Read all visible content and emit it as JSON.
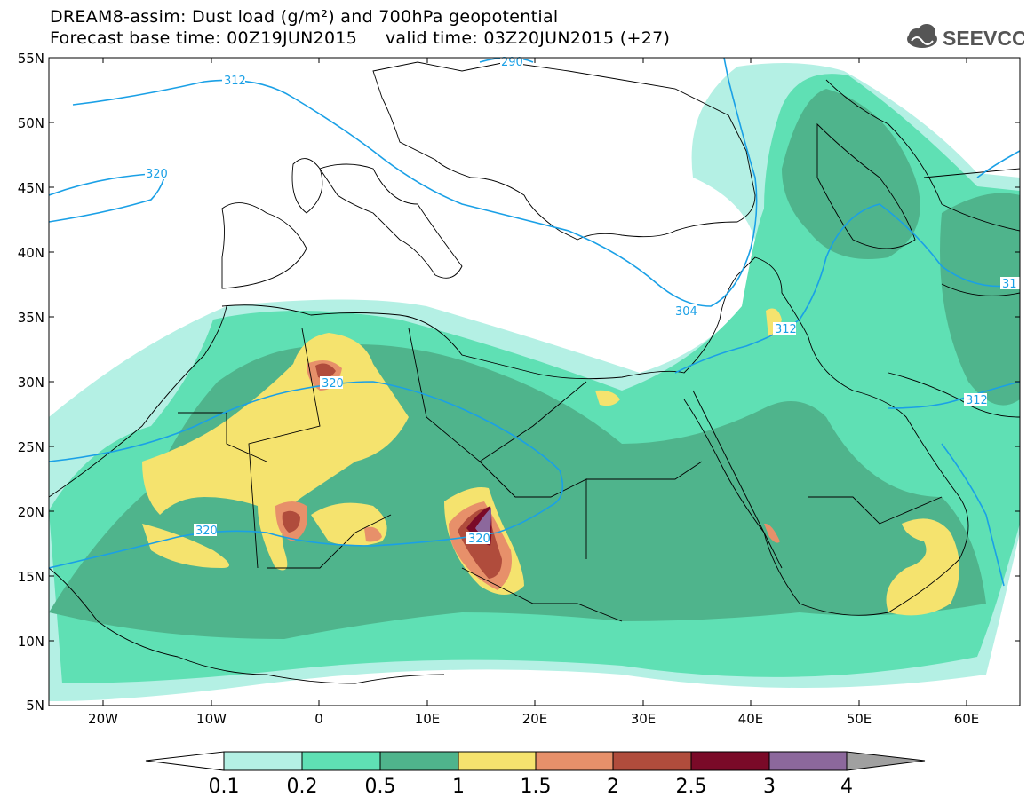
{
  "header": {
    "line1": "DREAM8-assim: Dust load (g/m²) and 700hPa geopotential",
    "line2": "Forecast base time: 00Z19JUN2015     valid time: 03Z20JUN2015 (+27)"
  },
  "logo": {
    "text": "SEEVCCC",
    "icon": "cloud-icon"
  },
  "axes": {
    "lat_labels": [
      "55N",
      "50N",
      "45N",
      "40N",
      "35N",
      "30N",
      "25N",
      "20N",
      "15N",
      "10N",
      "5N"
    ],
    "lon_labels": [
      "20W",
      "10W",
      "0",
      "10E",
      "20E",
      "30E",
      "40E",
      "50E",
      "60E"
    ]
  },
  "contours": {
    "labels": [
      "312",
      "320",
      "290",
      "320",
      "320",
      "320",
      "304",
      "312",
      "312",
      "31"
    ]
  },
  "colorbar": {
    "ticks": [
      "0.1",
      "0.2",
      "0.5",
      "1",
      "1.5",
      "2",
      "2.5",
      "3",
      "4"
    ],
    "colors": [
      "#b4f0e4",
      "#5fe0b4",
      "#4fb48c",
      "#f5e36e",
      "#e7906a",
      "#b04c3c",
      "#7a0a28",
      "#8c689c",
      "#a0a0a0"
    ]
  },
  "colors": {
    "contour_line": "#1aa0e6",
    "border_line": "#000000"
  }
}
